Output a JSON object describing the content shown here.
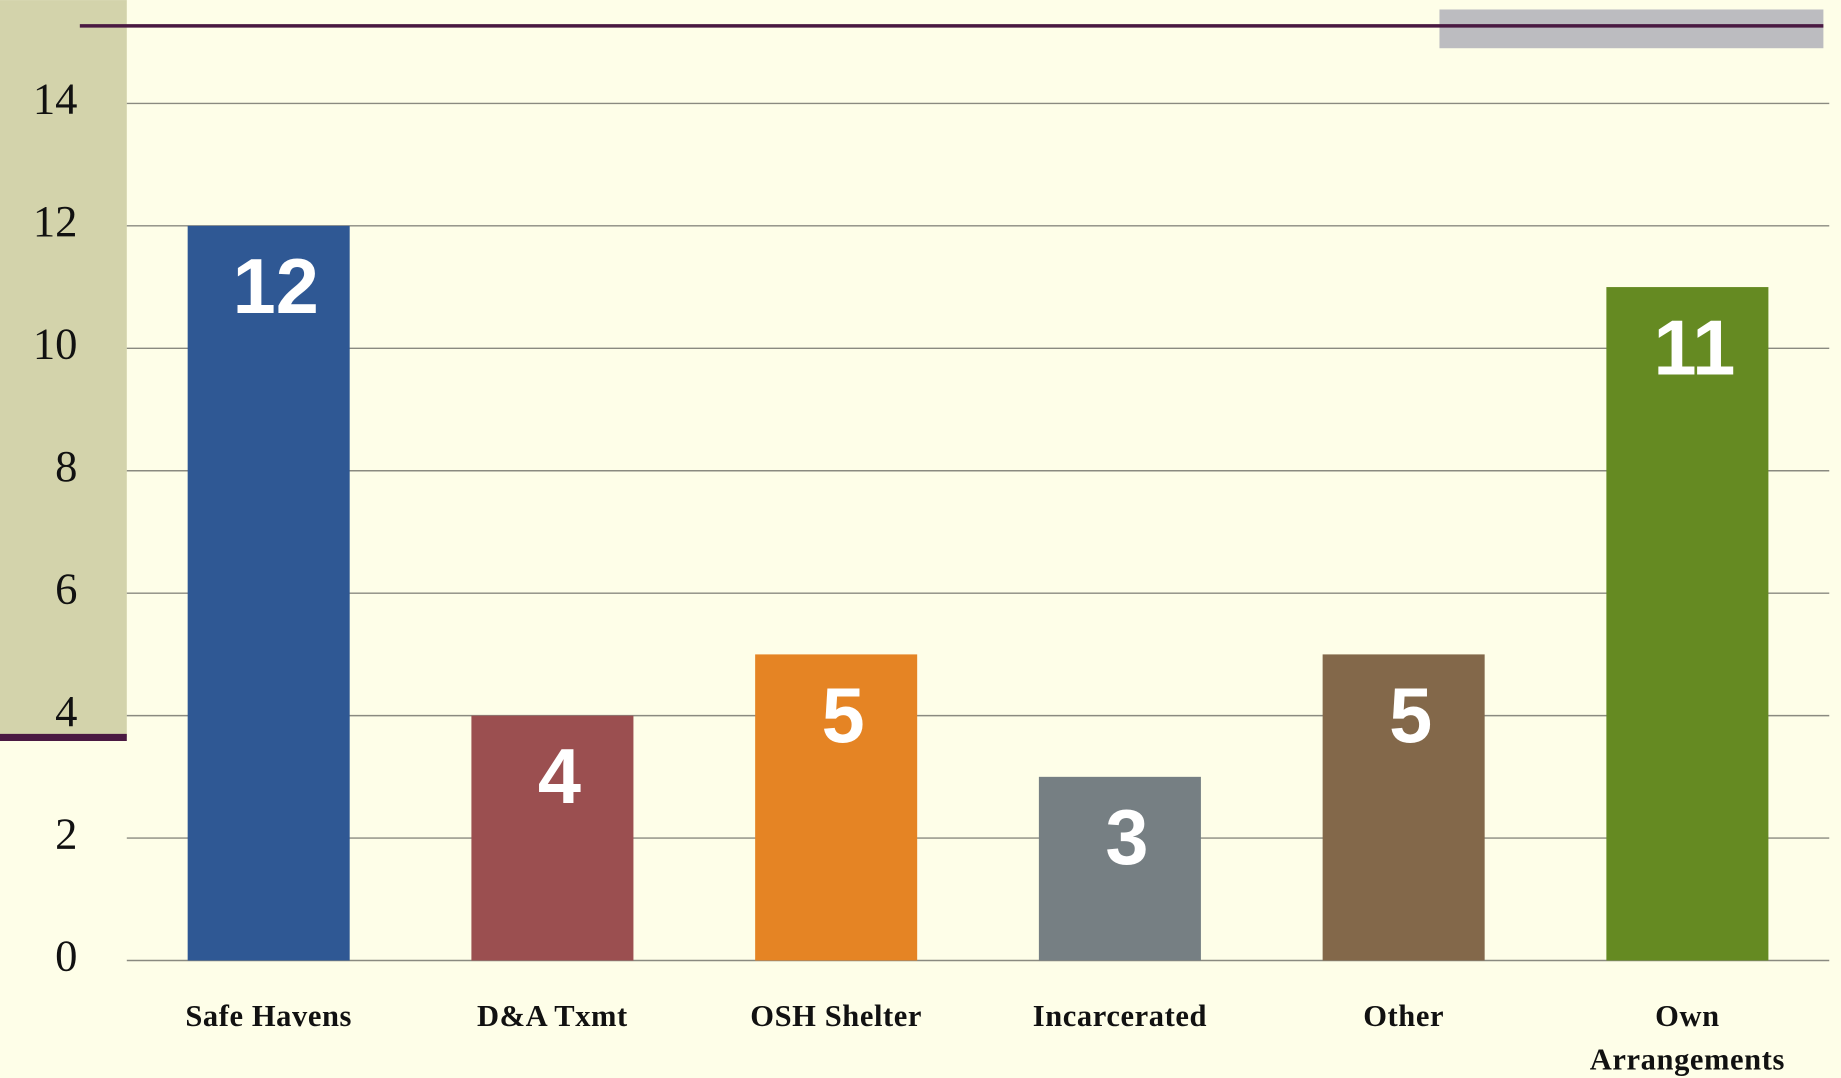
{
  "chart_data": {
    "type": "bar",
    "categories": [
      "Safe Havens",
      "D&A Txmt",
      "OSH Shelter",
      "Incarcerated",
      "Other",
      "Own Arrangements"
    ],
    "values": [
      12,
      4,
      5,
      3,
      5,
      11
    ],
    "colors": [
      "#2f5894",
      "#9b4f50",
      "#e58424",
      "#767f83",
      "#83684a",
      "#658a22"
    ],
    "ylim": [
      0,
      14
    ],
    "yticks": [
      0,
      2,
      4,
      6,
      8,
      10,
      12,
      14
    ],
    "grid": true
  }
}
